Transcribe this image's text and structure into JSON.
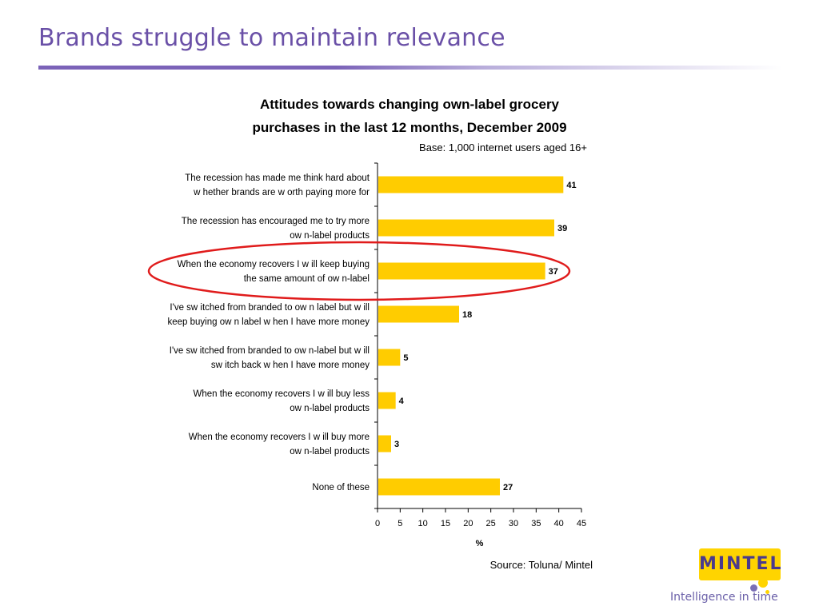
{
  "slide": {
    "title": "Brands struggle to maintain relevance",
    "source": "Source: Toluna/ Mintel",
    "logo_text": "MINTEL",
    "tagline": "Intelligence in time"
  },
  "colors": {
    "title": "#6a50a7",
    "bar": "#ffcc00",
    "highlight": "#e01b1b",
    "logo_bg": "#ffd400"
  },
  "chart_data": {
    "type": "bar",
    "orientation": "horizontal",
    "title_lines": [
      "Attitudes towards changing own-label grocery",
      "purchases in the last 12 months, December 2009"
    ],
    "base": "Base: 1,000 internet users aged 16+",
    "xlabel": "%",
    "xlim": [
      0,
      45
    ],
    "xticks": [
      0,
      5,
      10,
      15,
      20,
      25,
      30,
      35,
      40,
      45
    ],
    "grid": false,
    "categories": [
      [
        "The recession has made me think hard about",
        "w hether brands are w orth paying more for"
      ],
      [
        "The recession has encouraged me to try more",
        "ow n-label products"
      ],
      [
        "When the economy recovers I w ill keep buying",
        "the same amount of ow n-label"
      ],
      [
        "I've sw itched from branded to ow n label but w ill",
        "keep buying ow n label w hen I have more money"
      ],
      [
        "I've sw itched from branded to ow n-label but w ill",
        "sw itch back w hen I have more money"
      ],
      [
        "When the economy recovers I w ill buy less",
        "ow n-label products"
      ],
      [
        "When the economy recovers I w ill buy more",
        "ow n-label products"
      ],
      [
        "None of these"
      ]
    ],
    "values": [
      41,
      39,
      37,
      18,
      5,
      4,
      3,
      27
    ],
    "highlighted_index": 2
  }
}
